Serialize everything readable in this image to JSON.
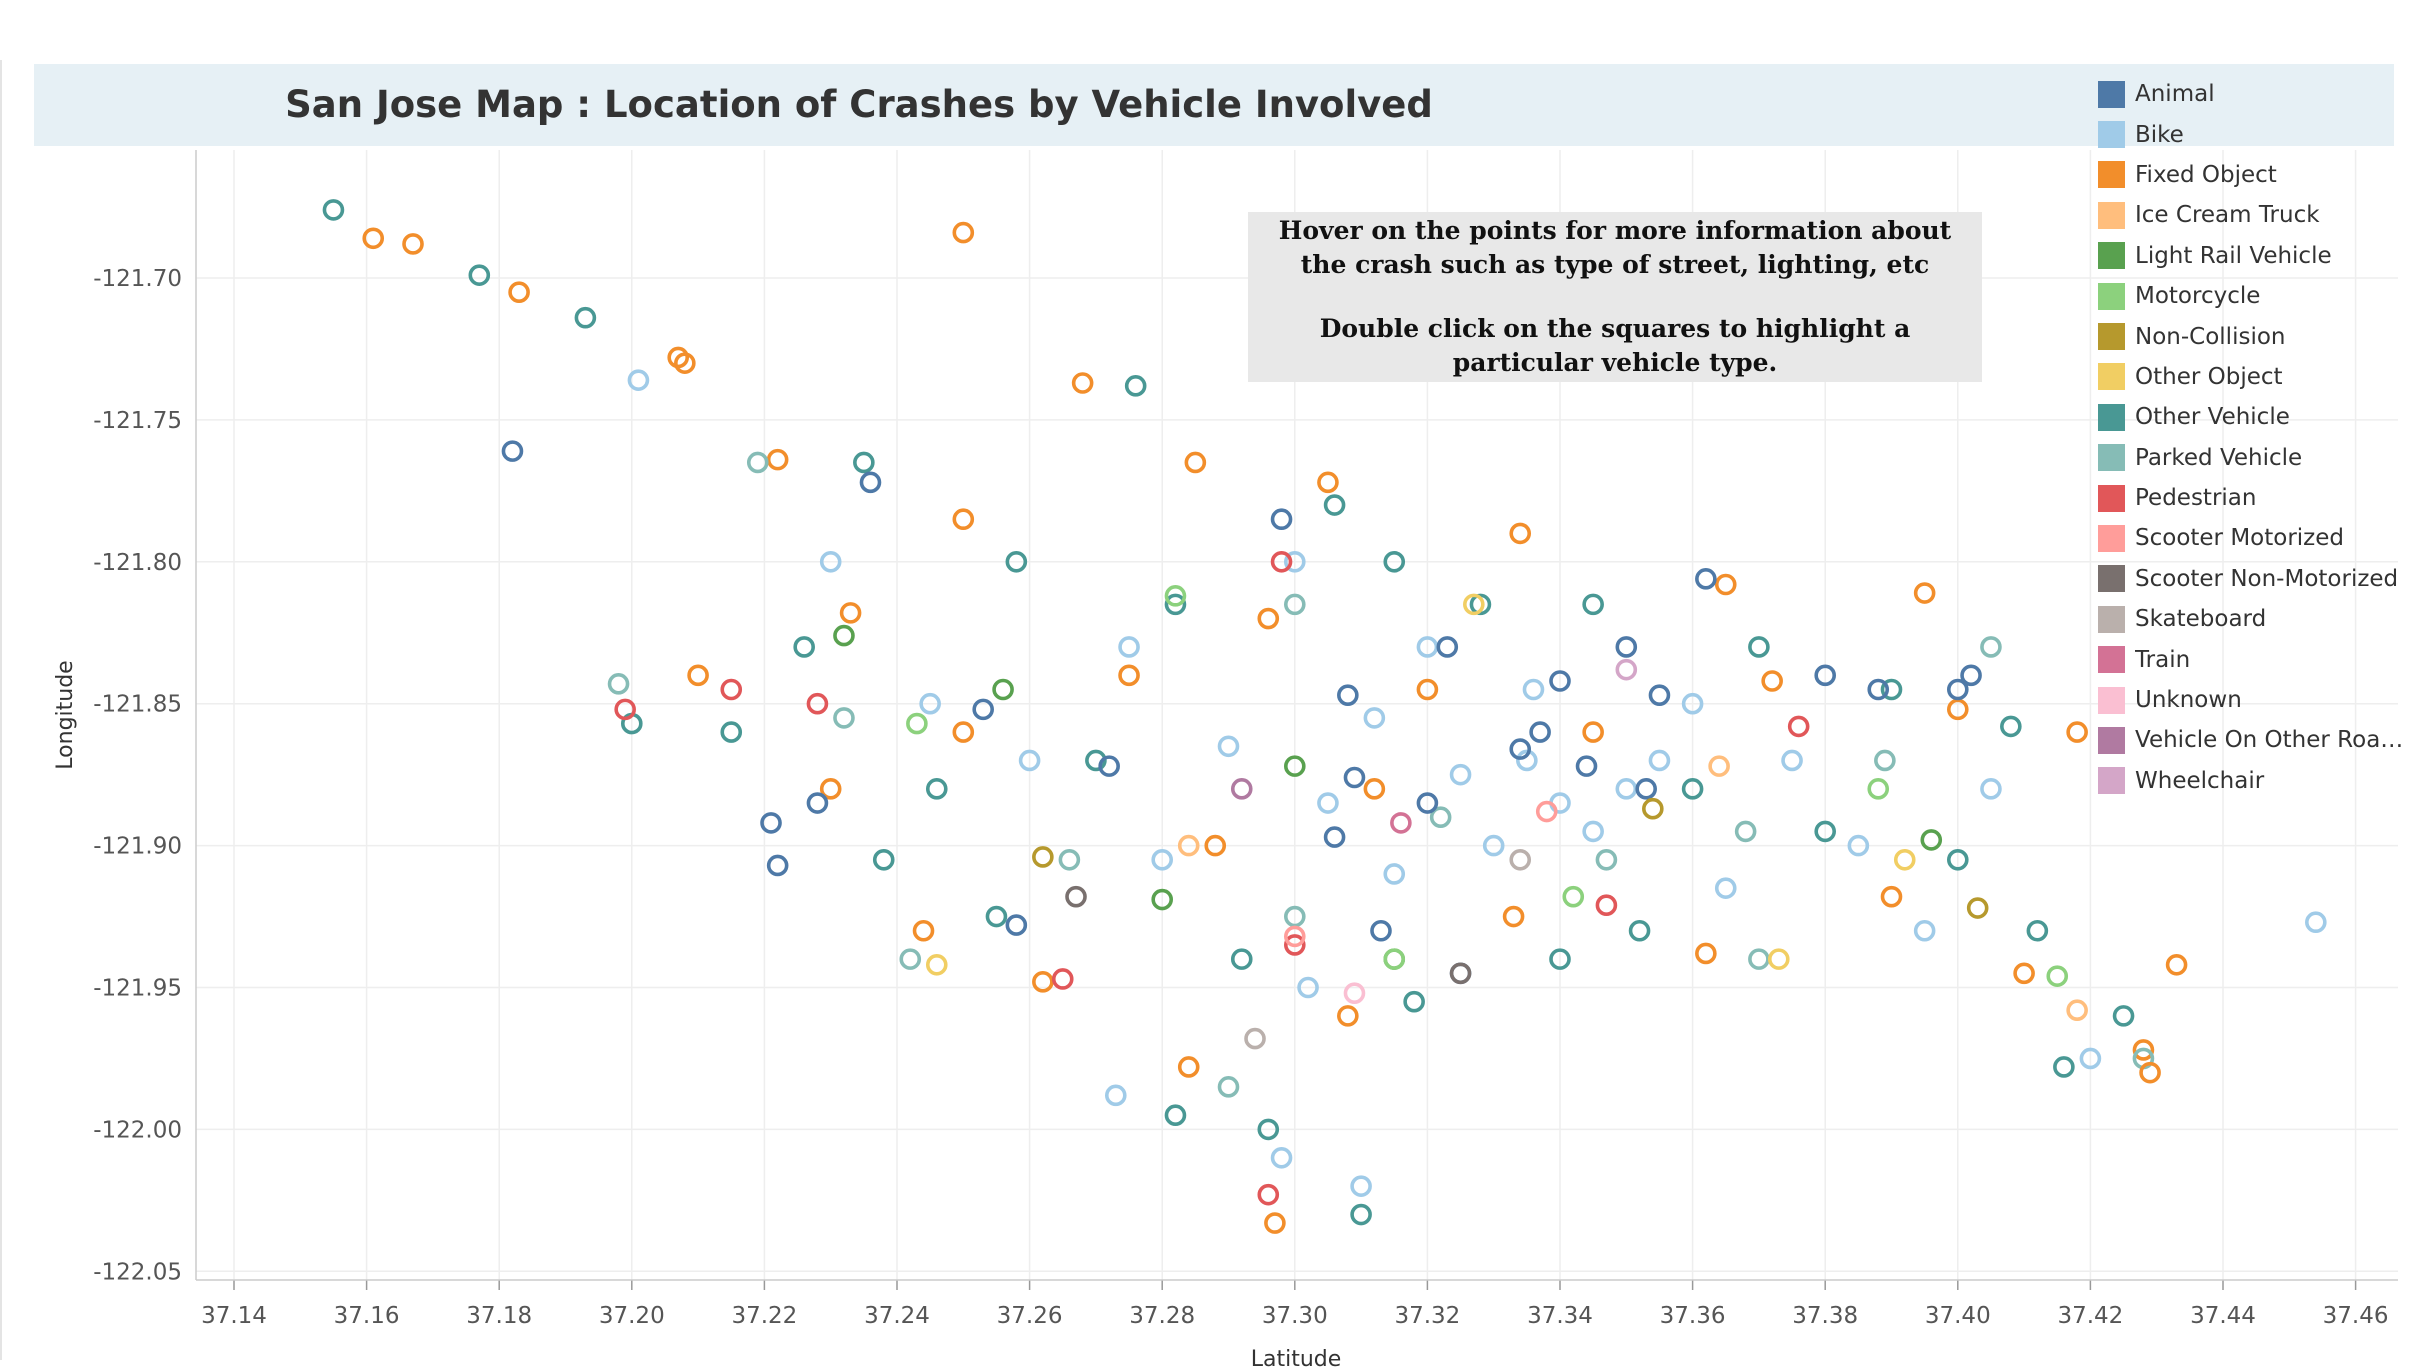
{
  "title": "San Jose Map : Location of Crashes by Vehicle Involved",
  "annotation": {
    "line1": "Hover on the points for more information about the crash such as type of street, lighting, etc",
    "line2": "Double click on the squares to highlight a particular vehicle type."
  },
  "legend": [
    {
      "label": "Animal",
      "color": "#4e79a7"
    },
    {
      "label": "Bike",
      "color": "#a0cbe8"
    },
    {
      "label": "Fixed Object",
      "color": "#f28e2b"
    },
    {
      "label": "Ice Cream Truck",
      "color": "#ffbe7d"
    },
    {
      "label": "Light Rail Vehicle",
      "color": "#59a14f"
    },
    {
      "label": "Motorcycle",
      "color": "#8cd17d"
    },
    {
      "label": "Non-Collision",
      "color": "#b6992d"
    },
    {
      "label": "Other Object",
      "color": "#f1ce63"
    },
    {
      "label": "Other Vehicle",
      "color": "#499894"
    },
    {
      "label": "Parked Vehicle",
      "color": "#86bcb6"
    },
    {
      "label": "Pedestrian",
      "color": "#e15759"
    },
    {
      "label": "Scooter Motorized",
      "color": "#ff9d9a"
    },
    {
      "label": "Scooter Non-Motorized",
      "color": "#79706e"
    },
    {
      "label": "Skateboard",
      "color": "#bab0ac"
    },
    {
      "label": "Train",
      "color": "#d37295"
    },
    {
      "label": "Unknown",
      "color": "#fabfd2"
    },
    {
      "label": "Vehicle On Other Roadw..",
      "color": "#b07aa1"
    },
    {
      "label": "Wheelchair",
      "color": "#d4a6c8"
    }
  ],
  "chart_data": {
    "type": "scatter",
    "title": "San Jose Map : Location of Crashes by Vehicle Involved",
    "xlabel": "Latitude",
    "ylabel": "Longitude",
    "xlim": [
      37.13,
      37.47
    ],
    "ylim": [
      -122.05,
      -121.685
    ],
    "x_ticks": [
      "37.14",
      "37.16",
      "37.18",
      "37.20",
      "37.22",
      "37.24",
      "37.26",
      "37.28",
      "37.30",
      "37.32",
      "37.34",
      "37.36",
      "37.38",
      "37.40",
      "37.42",
      "37.44",
      "37.46"
    ],
    "y_ticks": [
      "-121.70",
      "-121.75",
      "-121.80",
      "-121.85",
      "-121.90",
      "-121.95",
      "-122.00",
      "-122.05"
    ],
    "marker": "open-circle",
    "grid": "on",
    "legend_position": "right",
    "notable_points": [
      {
        "x": 37.155,
        "y": -121.676,
        "series": "Other Vehicle"
      },
      {
        "x": 37.161,
        "y": -121.686,
        "series": "Fixed Object"
      },
      {
        "x": 37.167,
        "y": -121.688,
        "series": "Fixed Object"
      },
      {
        "x": 37.177,
        "y": -121.699,
        "series": "Other Vehicle"
      },
      {
        "x": 37.183,
        "y": -121.705,
        "series": "Fixed Object"
      },
      {
        "x": 37.182,
        "y": -121.761,
        "series": "Animal"
      },
      {
        "x": 37.193,
        "y": -121.714,
        "series": "Other Vehicle"
      },
      {
        "x": 37.201,
        "y": -121.736,
        "series": "Bike"
      },
      {
        "x": 37.207,
        "y": -121.728,
        "series": "Fixed Object"
      },
      {
        "x": 37.208,
        "y": -121.73,
        "series": "Fixed Object"
      },
      {
        "x": 37.25,
        "y": -121.684,
        "series": "Fixed Object"
      },
      {
        "x": 37.199,
        "y": -121.852,
        "series": "Pedestrian"
      },
      {
        "x": 37.454,
        "y": -121.927,
        "series": "Bike"
      },
      {
        "x": 37.433,
        "y": -121.942,
        "series": "Fixed Object"
      },
      {
        "x": 37.416,
        "y": -121.978,
        "series": "Other Vehicle"
      },
      {
        "x": 37.429,
        "y": -121.98,
        "series": "Fixed Object"
      },
      {
        "x": 37.395,
        "y": -121.811,
        "series": "Fixed Object"
      },
      {
        "x": 37.222,
        "y": -121.907,
        "series": "Animal"
      }
    ],
    "series_points": {
      "Fixed Object": [
        [
          37.268,
          -121.737
        ],
        [
          37.25,
          -121.785
        ],
        [
          37.285,
          -121.765
        ],
        [
          37.305,
          -121.772
        ],
        [
          37.334,
          -121.79
        ],
        [
          37.365,
          -121.808
        ],
        [
          37.21,
          -121.84
        ],
        [
          37.23,
          -121.88
        ],
        [
          37.25,
          -121.86
        ],
        [
          37.275,
          -121.84
        ],
        [
          37.296,
          -121.82
        ],
        [
          37.32,
          -121.845
        ],
        [
          37.345,
          -121.86
        ],
        [
          37.372,
          -121.842
        ],
        [
          37.4,
          -121.852
        ],
        [
          37.418,
          -121.86
        ],
        [
          37.244,
          -121.93
        ],
        [
          37.262,
          -121.948
        ],
        [
          37.288,
          -121.9
        ],
        [
          37.308,
          -121.96
        ],
        [
          37.333,
          -121.925
        ],
        [
          37.362,
          -121.938
        ],
        [
          37.39,
          -121.918
        ],
        [
          37.41,
          -121.945
        ],
        [
          37.428,
          -121.972
        ],
        [
          37.297,
          -122.033
        ],
        [
          37.284,
          -121.978
        ],
        [
          37.222,
          -121.764
        ],
        [
          37.233,
          -121.818
        ],
        [
          37.312,
          -121.88
        ]
      ],
      "Bike": [
        [
          37.3,
          -121.8
        ],
        [
          37.32,
          -121.83
        ],
        [
          37.335,
          -121.87
        ],
        [
          37.35,
          -121.88
        ],
        [
          37.33,
          -121.9
        ],
        [
          37.345,
          -121.895
        ],
        [
          37.315,
          -121.91
        ],
        [
          37.34,
          -121.885
        ],
        [
          37.355,
          -121.87
        ],
        [
          37.325,
          -121.875
        ],
        [
          37.245,
          -121.85
        ],
        [
          37.26,
          -121.87
        ],
        [
          37.275,
          -121.83
        ],
        [
          37.29,
          -121.865
        ],
        [
          37.305,
          -121.885
        ],
        [
          37.36,
          -121.85
        ],
        [
          37.375,
          -121.87
        ],
        [
          37.385,
          -121.9
        ],
        [
          37.405,
          -121.88
        ],
        [
          37.42,
          -121.975
        ],
        [
          37.302,
          -121.95
        ],
        [
          37.298,
          -122.01
        ],
        [
          37.31,
          -122.02
        ],
        [
          37.273,
          -121.988
        ],
        [
          37.23,
          -121.8
        ],
        [
          37.28,
          -121.905
        ],
        [
          37.365,
          -121.915
        ],
        [
          37.395,
          -121.93
        ],
        [
          37.336,
          -121.845
        ],
        [
          37.312,
          -121.855
        ]
      ],
      "Other Vehicle": [
        [
          37.276,
          -121.738
        ],
        [
          37.235,
          -121.765
        ],
        [
          37.258,
          -121.8
        ],
        [
          37.282,
          -121.815
        ],
        [
          37.315,
          -121.8
        ],
        [
          37.345,
          -121.815
        ],
        [
          37.37,
          -121.83
        ],
        [
          37.39,
          -121.845
        ],
        [
          37.408,
          -121.858
        ],
        [
          37.215,
          -121.86
        ],
        [
          37.238,
          -121.905
        ],
        [
          37.255,
          -121.925
        ],
        [
          37.27,
          -121.87
        ],
        [
          37.292,
          -121.94
        ],
        [
          37.318,
          -121.955
        ],
        [
          37.34,
          -121.94
        ],
        [
          37.352,
          -121.93
        ],
        [
          37.38,
          -121.895
        ],
        [
          37.4,
          -121.905
        ],
        [
          37.412,
          -121.93
        ],
        [
          37.425,
          -121.96
        ],
        [
          37.282,
          -121.995
        ],
        [
          37.296,
          -122.0
        ],
        [
          37.31,
          -122.03
        ],
        [
          37.2,
          -121.857
        ],
        [
          37.226,
          -121.83
        ],
        [
          37.306,
          -121.78
        ],
        [
          37.328,
          -121.815
        ],
        [
          37.36,
          -121.88
        ],
        [
          37.246,
          -121.88
        ]
      ],
      "Parked Vehicle": [
        [
          37.219,
          -121.765
        ],
        [
          37.232,
          -121.855
        ],
        [
          37.266,
          -121.905
        ],
        [
          37.3,
          -121.925
        ],
        [
          37.322,
          -121.89
        ],
        [
          37.347,
          -121.905
        ],
        [
          37.368,
          -121.895
        ],
        [
          37.389,
          -121.87
        ],
        [
          37.405,
          -121.83
        ],
        [
          37.428,
          -121.975
        ],
        [
          37.29,
          -121.985
        ],
        [
          37.242,
          -121.94
        ],
        [
          37.198,
          -121.843
        ],
        [
          37.37,
          -121.94
        ],
        [
          37.3,
          -121.815
        ]
      ],
      "Animal": [
        [
          37.221,
          -121.892
        ],
        [
          37.228,
          -121.885
        ],
        [
          37.253,
          -121.852
        ],
        [
          37.258,
          -121.928
        ],
        [
          37.272,
          -121.872
        ],
        [
          37.298,
          -121.785
        ],
        [
          37.308,
          -121.847
        ],
        [
          37.309,
          -121.876
        ],
        [
          37.306,
          -121.897
        ],
        [
          37.313,
          -121.93
        ],
        [
          37.32,
          -121.885
        ],
        [
          37.323,
          -121.83
        ],
        [
          37.325,
          -121.945
        ],
        [
          37.334,
          -121.866
        ],
        [
          37.337,
          -121.86
        ],
        [
          37.34,
          -121.842
        ],
        [
          37.344,
          -121.872
        ],
        [
          37.35,
          -121.83
        ],
        [
          37.355,
          -121.847
        ],
        [
          37.362,
          -121.806
        ],
        [
          37.38,
          -121.84
        ],
        [
          37.388,
          -121.845
        ],
        [
          37.4,
          -121.845
        ],
        [
          37.402,
          -121.84
        ],
        [
          37.236,
          -121.772
        ],
        [
          37.353,
          -121.88
        ]
      ],
      "Pedestrian": [
        [
          37.228,
          -121.85
        ],
        [
          37.298,
          -121.8
        ],
        [
          37.296,
          -122.023
        ],
        [
          37.215,
          -121.845
        ],
        [
          37.3,
          -121.935
        ],
        [
          37.347,
          -121.921
        ],
        [
          37.265,
          -121.947
        ],
        [
          37.376,
          -121.858
        ]
      ],
      "Light Rail Vehicle": [
        [
          37.256,
          -121.845
        ],
        [
          37.3,
          -121.872
        ],
        [
          37.315,
          -121.94
        ],
        [
          37.28,
          -121.919
        ],
        [
          37.396,
          -121.898
        ],
        [
          37.232,
          -121.826
        ]
      ],
      "Motorcycle": [
        [
          37.243,
          -121.857
        ],
        [
          37.282,
          -121.812
        ],
        [
          37.342,
          -121.918
        ],
        [
          37.388,
          -121.88
        ],
        [
          37.415,
          -121.946
        ],
        [
          37.315,
          -121.94
        ]
      ],
      "Other Object": [
        [
          37.373,
          -121.94
        ],
        [
          37.246,
          -121.942
        ],
        [
          37.327,
          -121.815
        ],
        [
          37.392,
          -121.905
        ]
      ],
      "Ice Cream Truck": [
        [
          37.284,
          -121.9
        ],
        [
          37.364,
          -121.872
        ],
        [
          37.418,
          -121.958
        ]
      ],
      "Non-Collision": [
        [
          37.262,
          -121.904
        ],
        [
          37.354,
          -121.887
        ],
        [
          37.403,
          -121.922
        ]
      ],
      "Scooter Non-Motorized": [
        [
          37.325,
          -121.945
        ],
        [
          37.267,
          -121.918
        ]
      ],
      "Skateboard": [
        [
          37.334,
          -121.905
        ],
        [
          37.294,
          -121.968
        ]
      ],
      "Scooter Motorized": [
        [
          37.3,
          -121.932
        ],
        [
          37.338,
          -121.888
        ]
      ],
      "Train": [
        [
          37.316,
          -121.892
        ]
      ],
      "Unknown": [
        [
          37.309,
          -121.952
        ]
      ],
      "Vehicle On Other Roadw..": [
        [
          37.292,
          -121.88
        ]
      ],
      "Wheelchair": [
        [
          37.35,
          -121.838
        ]
      ]
    }
  }
}
